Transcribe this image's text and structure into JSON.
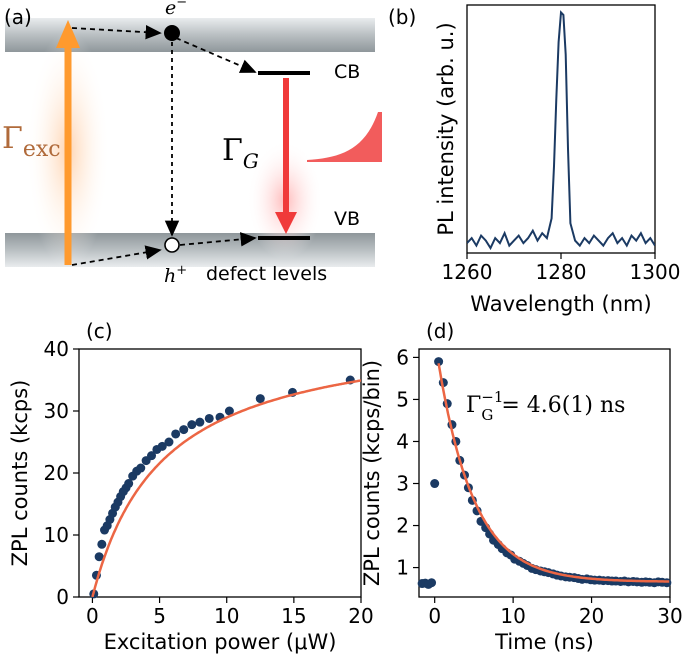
{
  "panels": {
    "a": {
      "label": "(a)",
      "electron": "e",
      "electron_sup": "−",
      "hole": "h",
      "hole_sup": "+",
      "cb": "CB",
      "vb": "VB",
      "gamma_exc": "Γ",
      "gamma_exc_sub": "exc",
      "gamma_g": "Γ",
      "gamma_g_sub": "G",
      "defect_levels": "defect levels"
    },
    "b": {
      "label": "(b)"
    },
    "c": {
      "label": "(c)"
    },
    "d": {
      "label": "(d)",
      "annotation_lhs": "Γ",
      "annotation_sup": "−1",
      "annotation_sub": "G",
      "annotation_rhs": "= 4.6(1) ns"
    }
  },
  "colors": {
    "band": "#8e979b",
    "excitation": "#ff9a2e",
    "exc_label": "#b06a3a",
    "red_arrow": "#f03a3a",
    "data": "#1b3a63",
    "fit": "#ec6644"
  },
  "chart_data": [
    {
      "id": "b",
      "type": "line",
      "title": "",
      "xlabel": "Wavelength (nm)",
      "ylabel": "PL intensity (arb. u.)",
      "xlim": [
        1260,
        1300
      ],
      "ylim": [
        0,
        1
      ],
      "xticks": [
        1260,
        1280,
        1300
      ],
      "x": [
        1260,
        1261,
        1262,
        1263,
        1264,
        1265,
        1266,
        1267,
        1268,
        1269,
        1270,
        1271,
        1272,
        1273,
        1274,
        1275,
        1276,
        1277,
        1278,
        1278.5,
        1279,
        1279.5,
        1280,
        1280.5,
        1281,
        1281.5,
        1282,
        1283,
        1284,
        1285,
        1286,
        1287,
        1288,
        1289,
        1290,
        1291,
        1292,
        1293,
        1294,
        1295,
        1296,
        1297,
        1298,
        1299,
        1300
      ],
      "y": [
        0.04,
        0.06,
        0.03,
        0.07,
        0.05,
        0.02,
        0.06,
        0.04,
        0.08,
        0.03,
        0.05,
        0.07,
        0.04,
        0.06,
        0.09,
        0.05,
        0.08,
        0.06,
        0.14,
        0.35,
        0.62,
        0.85,
        0.97,
        0.96,
        0.8,
        0.42,
        0.12,
        0.05,
        0.03,
        0.06,
        0.04,
        0.07,
        0.05,
        0.03,
        0.06,
        0.08,
        0.04,
        0.06,
        0.03,
        0.07,
        0.05,
        0.08,
        0.04,
        0.06,
        0.03
      ]
    },
    {
      "id": "c",
      "type": "scatter",
      "title": "",
      "xlabel": "Excitation power (μW)",
      "ylabel": "ZPL counts (kcps)",
      "xlim": [
        -1,
        20
      ],
      "ylim": [
        0,
        40
      ],
      "xticks": [
        0,
        5,
        10,
        15,
        20
      ],
      "yticks": [
        0,
        10,
        20,
        30,
        40
      ],
      "series": [
        {
          "name": "data",
          "x": [
            0.1,
            0.3,
            0.5,
            0.7,
            0.9,
            1.1,
            1.3,
            1.5,
            1.7,
            1.9,
            2.1,
            2.3,
            2.5,
            2.7,
            3.0,
            3.3,
            3.6,
            4.0,
            4.4,
            4.8,
            5.2,
            5.7,
            6.2,
            6.8,
            7.4,
            8.0,
            8.7,
            9.5,
            10.2,
            12.5,
            14.9,
            19.2
          ],
          "y": [
            0.5,
            3.5,
            6.5,
            8.5,
            10.8,
            11.5,
            12.5,
            13.5,
            14.5,
            15.3,
            16.2,
            17.0,
            17.6,
            18.3,
            19.5,
            20.3,
            20.8,
            22.0,
            22.8,
            23.8,
            24.3,
            25.0,
            26.3,
            27.0,
            27.8,
            28.2,
            28.8,
            29.0,
            30.0,
            32.0,
            33.0,
            35.0
          ]
        },
        {
          "name": "fit",
          "function": "saturation",
          "I_sat": 44,
          "P_sat": 5.2
        }
      ]
    },
    {
      "id": "d",
      "type": "scatter",
      "title": "",
      "xlabel": "Time (ns)",
      "ylabel": "ZPL counts (kcps/bin)",
      "xlim": [
        -2,
        30
      ],
      "ylim": [
        0.3,
        6.2
      ],
      "xticks": [
        0,
        10,
        20,
        30
      ],
      "yticks": [
        1,
        2,
        3,
        4,
        5,
        6
      ],
      "series": [
        {
          "name": "data",
          "x": [
            -1.6,
            -1.2,
            -0.8,
            -0.4,
            0.0,
            0.5,
            1.1,
            1.6,
            2.2,
            2.7,
            3.2,
            3.8,
            4.3,
            4.8,
            5.4,
            5.9,
            6.5,
            7.0,
            7.5,
            8.1,
            8.6,
            9.2,
            9.7,
            10.2,
            10.8,
            11.3,
            11.8,
            12.4,
            12.9,
            13.5,
            14.0,
            14.5,
            15.1,
            15.6,
            16.1,
            16.7,
            17.2,
            17.8,
            18.3,
            18.8,
            19.4,
            19.9,
            20.4,
            21.0,
            21.5,
            22.1,
            22.6,
            23.1,
            23.7,
            24.2,
            24.7,
            25.3,
            25.8,
            26.4,
            26.9,
            27.4,
            28.0,
            28.5,
            29.0,
            29.6
          ],
          "y": [
            0.62,
            0.63,
            0.6,
            0.64,
            3.0,
            5.9,
            5.4,
            4.9,
            4.4,
            4.0,
            3.55,
            3.2,
            2.9,
            2.6,
            2.35,
            2.1,
            1.95,
            1.8,
            1.65,
            1.55,
            1.45,
            1.35,
            1.3,
            1.2,
            1.15,
            1.1,
            1.05,
            0.98,
            0.95,
            0.92,
            0.9,
            0.88,
            0.85,
            0.82,
            0.8,
            0.78,
            0.77,
            0.76,
            0.74,
            0.72,
            0.73,
            0.71,
            0.7,
            0.7,
            0.69,
            0.69,
            0.68,
            0.68,
            0.67,
            0.68,
            0.66,
            0.67,
            0.66,
            0.65,
            0.66,
            0.65,
            0.64,
            0.66,
            0.65,
            0.64
          ]
        },
        {
          "name": "fit",
          "function": "exponential",
          "A": 5.2,
          "tau": 4.6,
          "offset": 0.66,
          "t0": 0.5
        }
      ]
    }
  ]
}
